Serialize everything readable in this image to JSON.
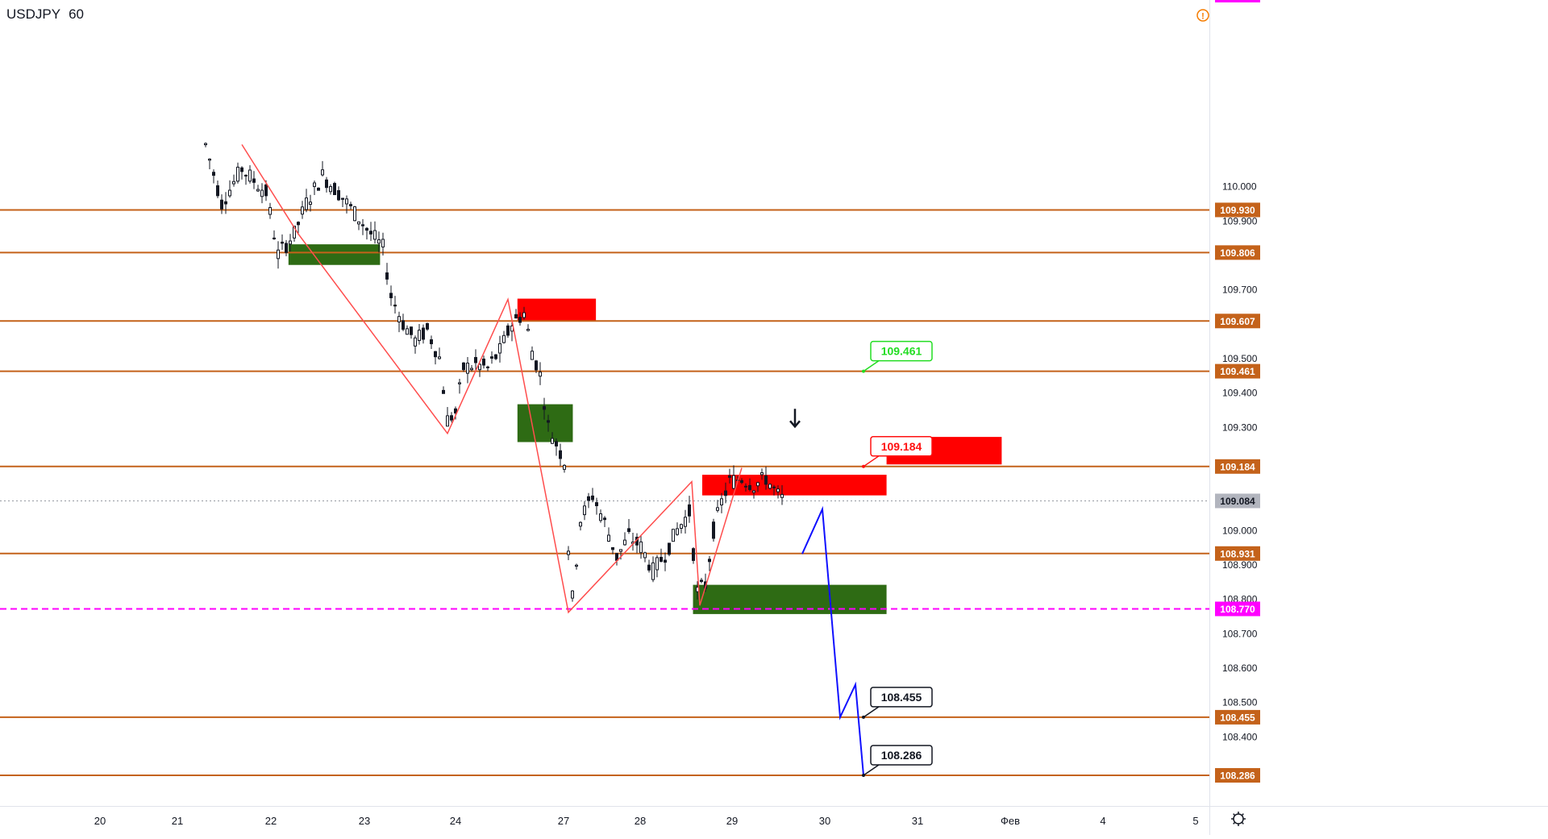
{
  "header": {
    "symbol": "USDJPY",
    "interval": "60"
  },
  "chart_data": {
    "type": "candlestick",
    "y_axis": {
      "range": [
        108.19,
        110.12
      ],
      "ticks": [
        "110.000",
        "109.900",
        "109.700",
        "109.500",
        "109.400",
        "109.300",
        "109.000",
        "108.900",
        "108.800",
        "108.700",
        "108.600",
        "108.500",
        "108.400"
      ],
      "tick_values": [
        110.0,
        109.9,
        109.7,
        109.5,
        109.4,
        109.3,
        109.0,
        108.9,
        108.8,
        108.7,
        108.6,
        108.5,
        108.4
      ]
    },
    "x_axis": {
      "labels": [
        "20",
        "21",
        "22",
        "23",
        "24",
        "27",
        "28",
        "29",
        "30",
        "31",
        "Фев",
        "4",
        "5"
      ]
    },
    "horizontal_levels": [
      {
        "label": "109.930",
        "value": 109.93
      },
      {
        "label": "109.806",
        "value": 109.806
      },
      {
        "label": "109.607",
        "value": 109.607
      },
      {
        "label": "109.461",
        "value": 109.461
      },
      {
        "label": "109.184",
        "value": 109.184
      },
      {
        "label": "108.931",
        "value": 108.931
      },
      {
        "label": "108.455",
        "value": 108.455
      },
      {
        "label": "108.286",
        "value": 108.286
      }
    ],
    "highlight_level": {
      "label": "108.770",
      "value": 108.77
    },
    "current_price": {
      "label": "109.084",
      "value": 109.084
    },
    "callouts": [
      {
        "text": "109.461",
        "value": 109.461,
        "color": "#22dd22"
      },
      {
        "text": "109.184",
        "value": 109.184,
        "color": "#ff1010"
      },
      {
        "text": "108.455",
        "value": 108.455,
        "color": "#131722"
      },
      {
        "text": "108.286",
        "value": 108.286,
        "color": "#131722"
      }
    ],
    "zones": [
      {
        "kind": "demand",
        "color": "#2e6b14",
        "x1": "21.6",
        "x2": "22.4",
        "y_top": 109.83,
        "y_bottom": 109.77
      },
      {
        "kind": "supply",
        "color": "#ff0000",
        "x1": "23.6",
        "x2": "24.7",
        "y_top": 109.672,
        "y_bottom": 109.607
      },
      {
        "kind": "demand",
        "color": "#2e6b14",
        "x1": "23.6",
        "x2": "24.2",
        "y_top": 109.365,
        "y_bottom": 109.255
      },
      {
        "kind": "supply",
        "color": "#ff0000",
        "x1": "27.0",
        "x2": "28.8",
        "y_top": 109.16,
        "y_bottom": 109.1
      },
      {
        "kind": "supply",
        "color": "#ff0000",
        "x1": "28.8",
        "x2": "29.8",
        "y_top": 109.27,
        "y_bottom": 109.19
      },
      {
        "kind": "demand",
        "color": "#2e6b14",
        "x1": "26.8",
        "x2": "28.8",
        "y_top": 108.84,
        "y_bottom": 108.755
      }
    ],
    "colors": {
      "level_line": "#c4621a",
      "highlight": "#ff00ff",
      "zigzag": "#ff4d4d",
      "projection": "#1010ff",
      "axis_text": "#131722",
      "grid_border": "#e0e3eb"
    }
  },
  "icons": {
    "alert": "warning-icon",
    "settings": "gear-icon",
    "arrow": "down-arrow-icon"
  }
}
